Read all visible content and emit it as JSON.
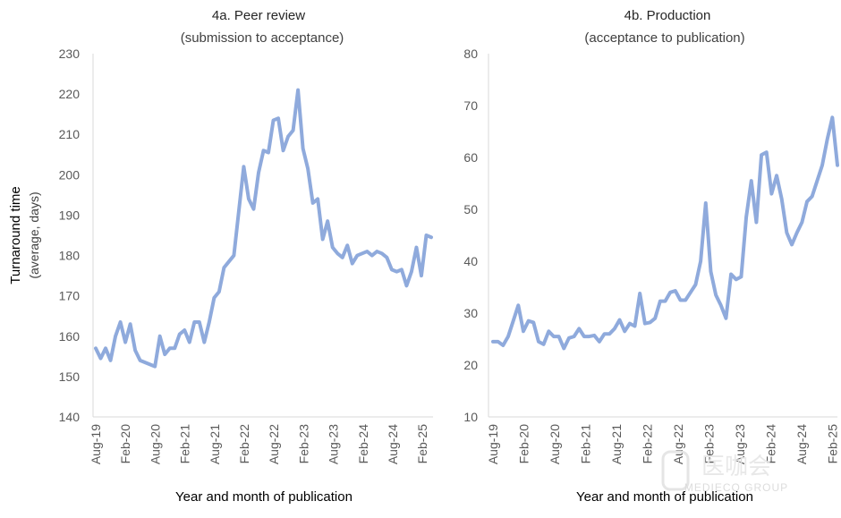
{
  "chart_data": [
    {
      "type": "line",
      "title": "4a. Peer review",
      "subtitle": "(submission to acceptance)",
      "xlabel": "Year and month of publication",
      "ylabel": "Turnaround time",
      "ylabel_sub": "(average, days)",
      "ylim": [
        140,
        230
      ],
      "yticks": [
        140,
        150,
        160,
        170,
        180,
        190,
        200,
        210,
        220,
        230
      ],
      "x_tick_labels": [
        "Aug-19",
        "Feb-20",
        "Aug-20",
        "Feb-21",
        "Aug-21",
        "Feb-22",
        "Aug-22",
        "Feb-23",
        "Aug-23",
        "Feb-24",
        "Aug-24",
        "Feb-25"
      ],
      "x_start": "Aug-19",
      "x_end": "Mar-25",
      "grid": false,
      "line_color": "#8faadc",
      "series": [
        {
          "name": "Peer review",
          "values": [
            157,
            154.5,
            157,
            154,
            160,
            163.5,
            158.5,
            163,
            156.5,
            154,
            153.5,
            153,
            152.5,
            160,
            155.5,
            157,
            157,
            160.5,
            161.5,
            158.5,
            163.5,
            163.5,
            158.5,
            163.5,
            169.5,
            171,
            177,
            178.5,
            180,
            191,
            202,
            194,
            191.5,
            200.5,
            206,
            205.5,
            213.5,
            214,
            206,
            209.5,
            211,
            221,
            206.5,
            201.5,
            193,
            194,
            184,
            188.5,
            182,
            180.5,
            179.5,
            182.5,
            178,
            180,
            180.5,
            181,
            180,
            181,
            180.5,
            179.5,
            176.5,
            176,
            176.5,
            172.5,
            176,
            182,
            175,
            185,
            184.5
          ]
        }
      ]
    },
    {
      "type": "line",
      "title": "4b. Production",
      "subtitle": "(acceptance to publication)",
      "xlabel": "Year and month of publication",
      "ylim": [
        10,
        80
      ],
      "yticks": [
        10,
        20,
        30,
        40,
        50,
        60,
        70,
        80
      ],
      "x_tick_labels": [
        "Aug-19",
        "Feb-20",
        "Aug-20",
        "Feb-21",
        "Aug-21",
        "Feb-22",
        "Aug-22",
        "Feb-23",
        "Aug-23",
        "Feb-24",
        "Aug-24",
        "Feb-25"
      ],
      "x_start": "Aug-19",
      "x_end": "Mar-25",
      "grid": false,
      "line_color": "#8faadc",
      "series": [
        {
          "name": "Production",
          "values": [
            24.5,
            24.5,
            23.8,
            25.5,
            28.5,
            31.5,
            26.5,
            28.5,
            28.2,
            24.5,
            24,
            26.5,
            25.5,
            25.5,
            23.2,
            25.2,
            25.5,
            27,
            25.5,
            25.5,
            25.7,
            24.5,
            26,
            26,
            27,
            28.7,
            26.5,
            28,
            27.5,
            33.8,
            28,
            28.2,
            29,
            32.3,
            32.3,
            34,
            34.3,
            32.5,
            32.5,
            34,
            35.5,
            40,
            51.2,
            38,
            33.5,
            31.5,
            29,
            37.5,
            36.5,
            37,
            48.5,
            55.5,
            47.5,
            60.5,
            61,
            53,
            56.5,
            52,
            45.5,
            43.2,
            45.5,
            47.5,
            51.5,
            52.5,
            55.5,
            58.5,
            63.5,
            67.7,
            58.5
          ]
        }
      ]
    }
  ],
  "watermark": {
    "brand": "医咖会",
    "name": "MEDIECO GROUP"
  }
}
